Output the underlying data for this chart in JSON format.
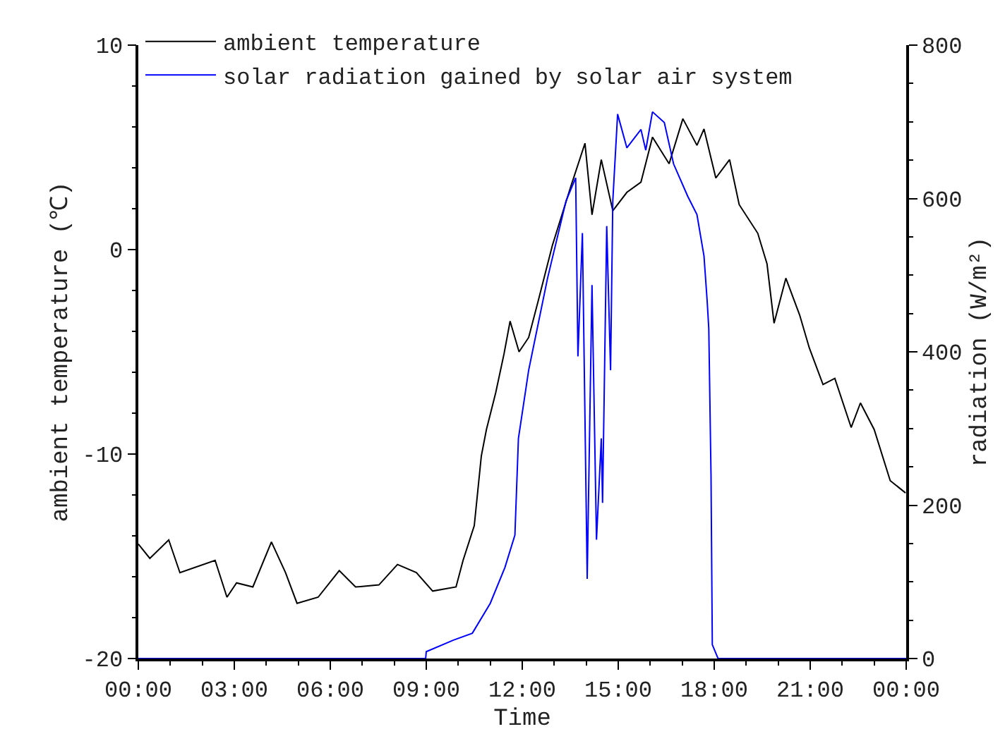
{
  "chart_data": {
    "type": "line",
    "xlabel": "Time",
    "ylabel": "ambient temperature (℃)",
    "y2label": "radiation (W/m²)",
    "xlim": [
      0,
      24
    ],
    "xticks": [
      {
        "value": 0,
        "label": "00:00"
      },
      {
        "value": 3,
        "label": "03:00"
      },
      {
        "value": 6,
        "label": "06:00"
      },
      {
        "value": 9,
        "label": "09:00"
      },
      {
        "value": 12,
        "label": "12:00"
      },
      {
        "value": 15,
        "label": "15:00"
      },
      {
        "value": 18,
        "label": "18:00"
      },
      {
        "value": 21,
        "label": "21:00"
      },
      {
        "value": 24,
        "label": "00:00"
      }
    ],
    "ylim": [
      -20,
      10
    ],
    "yticks": [
      -20,
      -10,
      0,
      10
    ],
    "y2lim": [
      0,
      800
    ],
    "y2ticks": [
      0,
      200,
      400,
      600,
      800
    ],
    "legend": "top left",
    "marker": "none",
    "line_style": "solid",
    "series": [
      {
        "name": "ambient temperature",
        "color": "#000000",
        "axis": "y",
        "x": [
          0,
          0.36,
          0.95,
          1.3,
          2.4,
          2.77,
          3.07,
          3.58,
          4.16,
          4.6,
          4.96,
          5.62,
          6.28,
          6.79,
          7.52,
          8.1,
          8.69,
          9.2,
          9.93,
          10.15,
          10.5,
          10.72,
          10.88,
          11.17,
          11.43,
          11.62,
          11.9,
          12.2,
          12.5,
          12.94,
          13.52,
          13.96,
          14.18,
          14.47,
          14.83,
          15.27,
          15.71,
          16.07,
          16.59,
          17.02,
          17.46,
          17.68,
          18.05,
          18.48,
          18.78,
          19.36,
          19.65,
          19.87,
          20.24,
          20.67,
          20.97,
          21.4,
          21.77,
          22.28,
          22.57,
          23.0,
          23.5,
          23.98
        ],
        "values": [
          -14.4,
          -15.1,
          -14.2,
          -15.8,
          -15.2,
          -17.0,
          -16.3,
          -16.5,
          -14.3,
          -15.8,
          -17.3,
          -17.0,
          -15.7,
          -16.5,
          -16.4,
          -15.4,
          -15.8,
          -16.7,
          -16.5,
          -15.2,
          -13.5,
          -10.1,
          -8.8,
          -7.0,
          -5.1,
          -3.5,
          -5.0,
          -4.3,
          -2.5,
          0.2,
          3.1,
          5.2,
          1.7,
          4.4,
          1.9,
          2.8,
          3.3,
          5.5,
          4.2,
          6.4,
          5.1,
          5.9,
          3.5,
          4.4,
          2.2,
          0.8,
          -0.7,
          -3.6,
          -1.4,
          -3.2,
          -4.8,
          -6.6,
          -6.3,
          -8.7,
          -7.5,
          -8.8,
          -11.3,
          -11.9
        ]
      },
      {
        "name": "solar radiation gained by solar air system",
        "color": "#0000ff",
        "axis": "y2",
        "x": [
          0,
          8.98,
          9.0,
          9.85,
          10.44,
          11.0,
          11.46,
          11.77,
          11.88,
          12.2,
          12.79,
          13.37,
          13.67,
          13.74,
          13.88,
          14.03,
          14.18,
          14.32,
          14.47,
          14.51,
          14.64,
          14.76,
          14.83,
          14.98,
          15.27,
          15.71,
          15.86,
          16.07,
          16.44,
          16.73,
          17.17,
          17.46,
          17.68,
          17.78,
          17.83,
          17.9,
          17.94,
          18.12,
          24
        ],
        "values": [
          0,
          0,
          9,
          24,
          33,
          72,
          119,
          161,
          287,
          376,
          496,
          597,
          627,
          394,
          555,
          104,
          487,
          155,
          287,
          203,
          564,
          376,
          597,
          710,
          666,
          690,
          663,
          713,
          699,
          645,
          603,
          579,
          525,
          466,
          430,
          239,
          18,
          0,
          0
        ]
      }
    ]
  }
}
